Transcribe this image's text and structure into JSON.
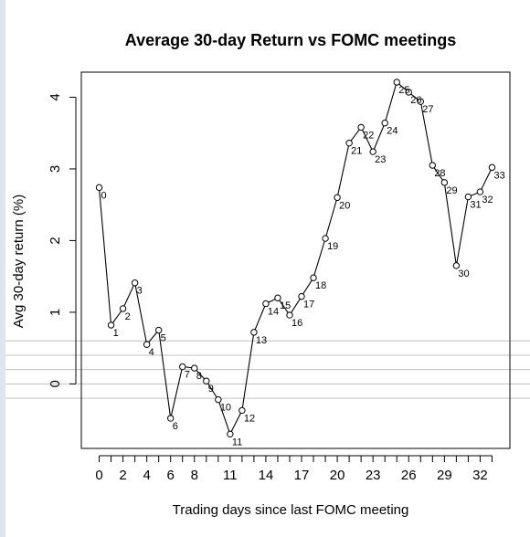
{
  "chart_data": {
    "type": "line",
    "title": "Average 30-day Return vs FOMC meetings",
    "xlabel": "Trading days since last FOMC meeting",
    "ylabel": "Avg 30-day return (%)",
    "xlim": [
      -1.5,
      34.5
    ],
    "ylim": [
      -0.9,
      4.35
    ],
    "x_ticks": [
      0,
      2,
      4,
      6,
      8,
      11,
      14,
      17,
      20,
      23,
      26,
      29,
      32
    ],
    "x_tick_labels": [
      "0",
      "2",
      "4",
      "6",
      "8",
      "11",
      "14",
      "17",
      "20",
      "23",
      "26",
      "29",
      "32"
    ],
    "y_ticks": [
      0,
      1,
      2,
      3,
      4
    ],
    "y_tick_labels": [
      "0",
      "1",
      "2",
      "3",
      "4"
    ],
    "x_minor_ticks": [
      1,
      3,
      5,
      7,
      9,
      10,
      12,
      13,
      15,
      16,
      18,
      19,
      21,
      22,
      24,
      25,
      27,
      28,
      30,
      31,
      33
    ],
    "reference_lines": [
      -0.2,
      0.0,
      0.2,
      0.4,
      0.6
    ],
    "reference_line_color": "#c0c0c0",
    "line_color": "#000000",
    "marker": "open-circle",
    "x": [
      0,
      1,
      2,
      3,
      4,
      5,
      6,
      7,
      8,
      9,
      10,
      11,
      12,
      13,
      14,
      15,
      16,
      17,
      18,
      19,
      20,
      21,
      22,
      23,
      24,
      25,
      26,
      27,
      28,
      29,
      30,
      31,
      32,
      33
    ],
    "values": [
      2.74,
      0.82,
      1.05,
      1.41,
      0.55,
      0.75,
      -0.48,
      0.24,
      0.22,
      0.04,
      -0.22,
      -0.7,
      -0.37,
      0.72,
      1.12,
      1.2,
      0.96,
      1.22,
      1.48,
      2.03,
      2.6,
      3.36,
      3.58,
      3.24,
      3.64,
      4.21,
      4.07,
      3.94,
      3.05,
      2.81,
      1.65,
      2.61,
      2.68,
      3.02
    ],
    "point_labels": [
      "0",
      "1",
      "2",
      "3",
      "4",
      "5",
      "6",
      "7",
      "8",
      "9",
      "10",
      "11",
      "12",
      "13",
      "14",
      "15",
      "16",
      "17",
      "18",
      "19",
      "20",
      "21",
      "22",
      "23",
      "24",
      "25",
      "26",
      "27",
      "28",
      "29",
      "30",
      "31",
      "32",
      "33"
    ]
  }
}
